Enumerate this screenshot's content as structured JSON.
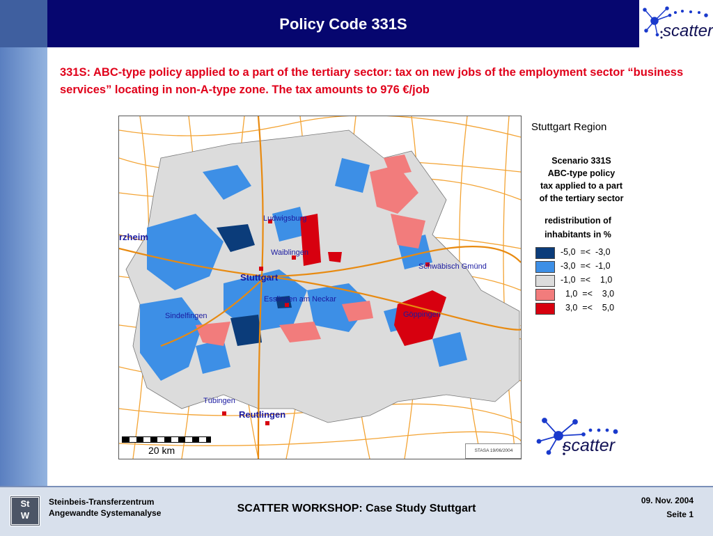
{
  "header": {
    "title": "Policy Code 331S",
    "logo_text": "scatter"
  },
  "description": "331S: ABC-type policy applied to a part of the tertiary sector: tax on new jobs of the employment  sector “business services” locating in non-A-type zone. The tax amounts to 976 €/job",
  "map": {
    "cities": {
      "pforzheim": "rzheim",
      "ludwigsburg": "Ludwigsburg",
      "waiblingen": "Waiblingen",
      "stuttgart": "Stuttgart",
      "schwaebisch_gmuend": "Schwäbisch Gmünd",
      "esslingen": "Esslingen am Neckar",
      "sindelfingen": "Sindelfingen",
      "goeppingen": "Göppingen",
      "tuebingen": "Tübingen",
      "reutlingen": "Reutlingen"
    },
    "scale_label": "20 km",
    "source_stamp": "STASA 19/06/2004",
    "colors": {
      "dark_blue": "#0b3c7a",
      "blue": "#3d8fe6",
      "grey": "#dcdcdc",
      "pink": "#f27c7c",
      "red": "#d7000f",
      "roads": "#f29a1e"
    }
  },
  "legend": {
    "region_title": "Stuttgart Region",
    "scenario_lines": [
      "Scenario 331S",
      "ABC-type policy",
      "tax applied to a part",
      "of the tertiary sector"
    ],
    "redistribution_lines": [
      "redistribution of",
      "inhabitants in %"
    ],
    "classes": [
      {
        "range": "-5,0  =<  -3,0",
        "color": "#0b3c7a"
      },
      {
        "range": "-3,0  =<  -1,0",
        "color": "#3d8fe6"
      },
      {
        "range": "-1,0  =<    1,0",
        "color": "#dcdcdc"
      },
      {
        "range": "  1,0  =<    3,0",
        "color": "#f27c7c"
      },
      {
        "range": "  3,0  =<    5,0",
        "color": "#d7000f"
      }
    ],
    "logo_text": "scatter"
  },
  "footer": {
    "org_line1": "Steinbeis-Transferzentrum",
    "org_line2": "Angewandte Systemanalyse",
    "logo_letters": [
      "St",
      "W"
    ],
    "title": "SCATTER WORKSHOP: Case Study Stuttgart",
    "date": "09. Nov.  2004",
    "page": "Seite 1"
  }
}
